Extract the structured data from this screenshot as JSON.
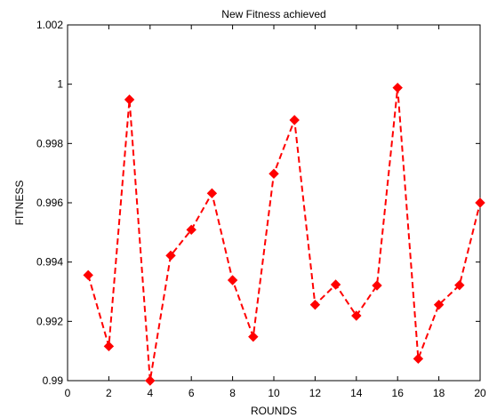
{
  "chart_data": {
    "type": "line",
    "title": "New Fitness achieved",
    "xlabel": "ROUNDS",
    "ylabel": "FITNESS",
    "xlim": [
      0,
      20
    ],
    "ylim": [
      0.99,
      1.002
    ],
    "x_ticks": [
      "0",
      "2",
      "4",
      "6",
      "8",
      "10",
      "12",
      "14",
      "16",
      "18",
      "20"
    ],
    "y_ticks": [
      "0.99",
      "0.992",
      "0.994",
      "0.996",
      "0.998",
      "1",
      "1.002"
    ],
    "grid": false,
    "series": [
      {
        "color": "#ff0000",
        "line_style": "dashed",
        "marker": "diamond",
        "x": [
          1,
          2,
          3,
          4,
          5,
          6,
          7,
          8,
          9,
          10,
          11,
          12,
          13,
          14,
          15,
          16,
          17,
          18,
          19,
          20
        ],
        "values": [
          0.99356,
          0.99116,
          0.99948,
          0.99,
          0.99422,
          0.99509,
          0.99632,
          0.99339,
          0.99148,
          0.99698,
          0.99879,
          0.99256,
          0.99324,
          0.99219,
          0.99321,
          0.99988,
          0.99074,
          0.99256,
          0.99322,
          0.996
        ]
      }
    ]
  }
}
